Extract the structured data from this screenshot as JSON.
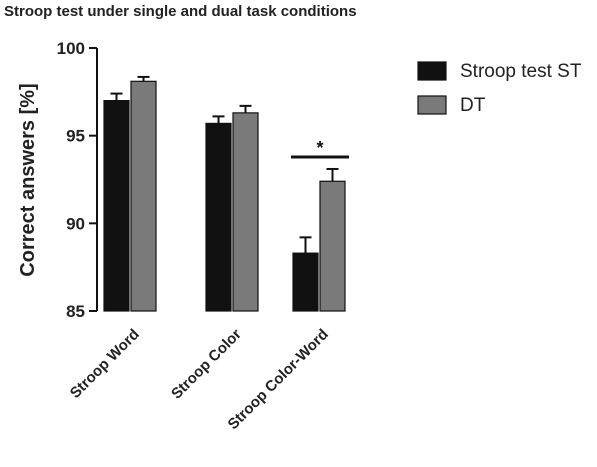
{
  "chart_data": {
    "type": "bar",
    "title": "Stroop test under single and dual task conditions",
    "xlabel": "",
    "ylabel": "Correct answers [%]",
    "ylim": [
      85,
      100
    ],
    "yticks": [
      85,
      90,
      95,
      100
    ],
    "categories": [
      "Stroop Word",
      "Stroop Color",
      "Stroop Color-Word"
    ],
    "series": [
      {
        "name": "Stroop test ST",
        "color": "#111111",
        "values": [
          97.0,
          95.7,
          88.3
        ],
        "errors": [
          0.4,
          0.4,
          0.9
        ]
      },
      {
        "name": "DT",
        "color": "#7a7a7a",
        "values": [
          98.1,
          96.3,
          92.4
        ],
        "errors": [
          0.25,
          0.4,
          0.7
        ]
      }
    ],
    "legend": "right",
    "grid": false,
    "annotations": [
      {
        "text": "*",
        "category": "Stroop Color-Word",
        "between": [
          "Stroop test ST",
          "DT"
        ]
      }
    ]
  }
}
